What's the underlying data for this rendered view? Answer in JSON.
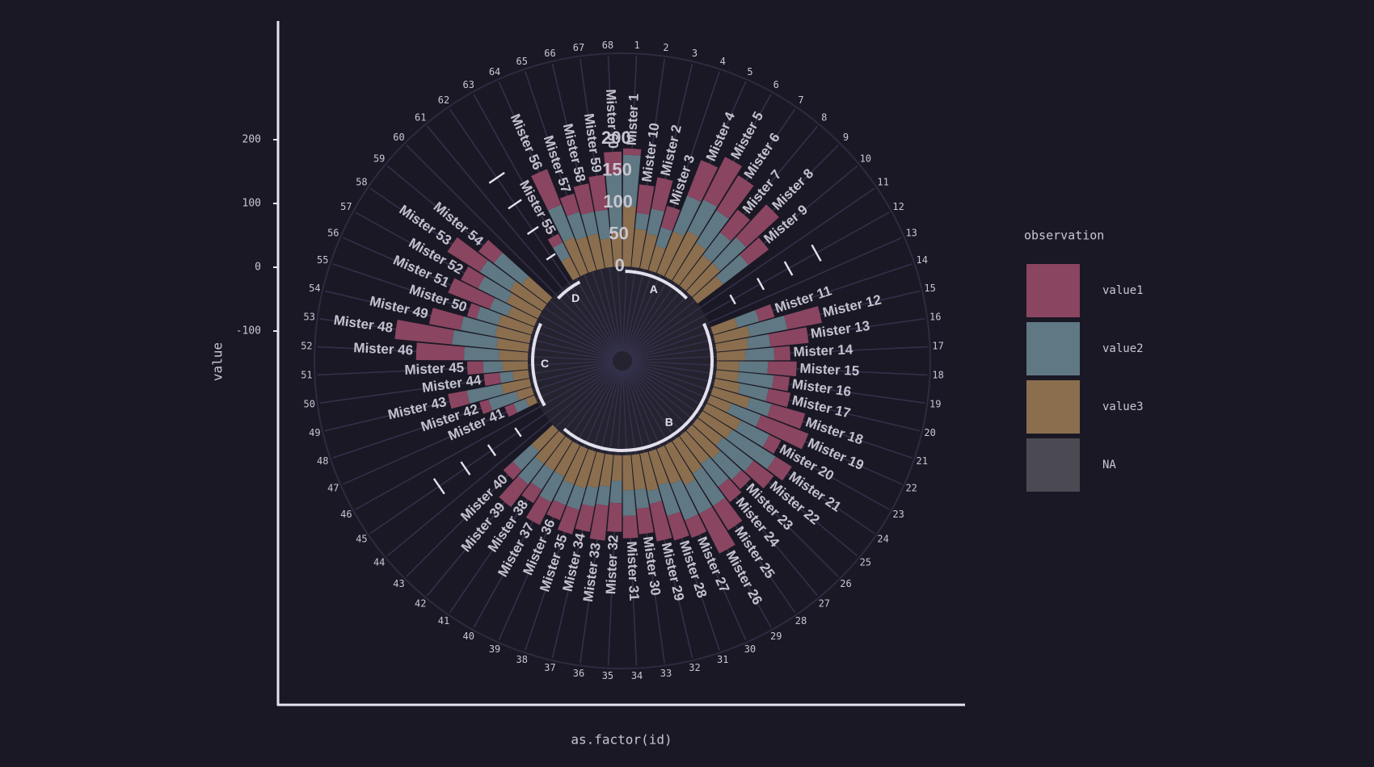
{
  "chart_data": {
    "type": "circular-stacked-bar",
    "xlabel": "as.factor(id)",
    "ylabel": "value",
    "y_ticks": [
      200,
      100,
      0,
      -100
    ],
    "y_range": [
      -200,
      300
    ],
    "radial_scale_labels": [
      "0",
      "50",
      "100",
      "150",
      "200"
    ],
    "radial_scale_values": [
      0,
      50,
      100,
      150,
      200
    ],
    "id_ticks": [
      "1",
      "2",
      "3",
      "4",
      "5",
      "6",
      "7",
      "8",
      "9",
      "10",
      "11",
      "12",
      "13",
      "14",
      "15",
      "16",
      "17",
      "18",
      "19",
      "20",
      "21",
      "22",
      "23",
      "24",
      "25",
      "26",
      "27",
      "28",
      "29",
      "30",
      "31",
      "32",
      "33",
      "34",
      "35",
      "36",
      "37",
      "38",
      "39",
      "40",
      "41",
      "42",
      "43",
      "44",
      "45",
      "46",
      "47",
      "48",
      "49",
      "50",
      "51",
      "52",
      "53",
      "54",
      "55",
      "56",
      "57",
      "58",
      "59",
      "60",
      "61",
      "62",
      "63",
      "64",
      "65",
      "66",
      "67",
      "68"
    ],
    "legend": {
      "title": "observation",
      "position": "right",
      "entries": [
        {
          "label": "value1",
          "color": "#8a4560"
        },
        {
          "label": "value2",
          "color": "#5f7883"
        },
        {
          "label": "value3",
          "color": "#8a6e4e"
        },
        {
          "label": "NA",
          "color": "#4b4a52"
        }
      ]
    },
    "groups": [
      {
        "name": "A",
        "start_id": 1,
        "end_id": 9
      },
      {
        "name": "B",
        "start_id": 13,
        "end_id": 42
      },
      {
        "name": "C",
        "start_id": 46,
        "end_id": 56
      },
      {
        "name": "D",
        "start_id": 60,
        "end_id": 63
      }
    ],
    "bars": [
      {
        "id": 1,
        "label": "Mister 1",
        "value1": 10,
        "value2": 80,
        "value3": 95
      },
      {
        "id": 2,
        "label": "Mister 10",
        "value1": 45,
        "value2": 25,
        "value3": 60
      },
      {
        "id": 3,
        "label": "Mister 2",
        "value1": 50,
        "value2": 40,
        "value3": 55
      },
      {
        "id": 4,
        "label": "Mister 3",
        "value1": 35,
        "value2": 30,
        "value3": 40
      },
      {
        "id": 5,
        "label": "Mister 4",
        "value1": 60,
        "value2": 60,
        "value3": 70
      },
      {
        "id": 6,
        "label": "Mister 5",
        "value1": 75,
        "value2": 55,
        "value3": 80
      },
      {
        "id": 7,
        "label": "Mister 6",
        "value1": 65,
        "value2": 60,
        "value3": 70
      },
      {
        "id": 8,
        "label": "Mister 7",
        "value1": 45,
        "value2": 45,
        "value3": 60
      },
      {
        "id": 9,
        "label": "Mister 8",
        "value1": 70,
        "value2": 55,
        "value3": 60
      },
      {
        "id": 10,
        "label": "Mister 9",
        "value1": 40,
        "value2": 50,
        "value3": 50
      },
      {
        "id": 14,
        "label": "Mister 11",
        "value1": 25,
        "value2": 35,
        "value3": 40
      },
      {
        "id": 15,
        "label": "Mister 12",
        "value1": 55,
        "value2": 60,
        "value3": 55
      },
      {
        "id": 16,
        "label": "Mister 13",
        "value1": 60,
        "value2": 35,
        "value3": 50
      },
      {
        "id": 17,
        "label": "Mister 14",
        "value1": 25,
        "value2": 45,
        "value3": 45
      },
      {
        "id": 18,
        "label": "Mister 15",
        "value1": 45,
        "value2": 45,
        "value3": 35
      },
      {
        "id": 19,
        "label": "Mister 16",
        "value1": 25,
        "value2": 55,
        "value3": 35
      },
      {
        "id": 20,
        "label": "Mister 17",
        "value1": 35,
        "value2": 45,
        "value3": 40
      },
      {
        "id": 21,
        "label": "Mister 18",
        "value1": 55,
        "value2": 35,
        "value3": 60
      },
      {
        "id": 22,
        "label": "Mister 19",
        "value1": 80,
        "value2": 50,
        "value3": 35
      },
      {
        "id": 23,
        "label": "Mister 20",
        "value1": 20,
        "value2": 50,
        "value3": 60
      },
      {
        "id": 24,
        "label": "Mister 21",
        "value1": 30,
        "value2": 80,
        "value3": 55
      },
      {
        "id": 25,
        "label": "Mister 22",
        "value1": 40,
        "value2": 60,
        "value3": 50
      },
      {
        "id": 26,
        "label": "Mister 23",
        "value1": 20,
        "value2": 45,
        "value3": 60
      },
      {
        "id": 27,
        "label": "Mister 24",
        "value1": 30,
        "value2": 45,
        "value3": 55
      },
      {
        "id": 28,
        "label": "Mister 25",
        "value1": 45,
        "value2": 60,
        "value3": 60
      },
      {
        "id": 29,
        "label": "Mister 26",
        "value1": 70,
        "value2": 50,
        "value3": 70
      },
      {
        "id": 30,
        "label": "Mister 27",
        "value1": 30,
        "value2": 60,
        "value3": 60
      },
      {
        "id": 31,
        "label": "Mister 28",
        "value1": 40,
        "value2": 50,
        "value3": 55
      },
      {
        "id": 32,
        "label": "Mister 29",
        "value1": 60,
        "value2": 20,
        "value3": 60
      },
      {
        "id": 33,
        "label": "Mister 30",
        "value1": 40,
        "value2": 30,
        "value3": 55
      },
      {
        "id": 34,
        "label": "Mister 31",
        "value1": 35,
        "value2": 40,
        "value3": 55
      },
      {
        "id": 35,
        "label": "Mister 32",
        "value1": 45,
        "value2": 35,
        "value3": 40
      },
      {
        "id": 36,
        "label": "Mister 33",
        "value1": 55,
        "value2": 30,
        "value3": 50
      },
      {
        "id": 37,
        "label": "Mister 34",
        "value1": 40,
        "value2": 30,
        "value3": 55
      },
      {
        "id": 38,
        "label": "Mister 35",
        "value1": 40,
        "value2": 35,
        "value3": 60
      },
      {
        "id": 39,
        "label": "Mister 36",
        "value1": 25,
        "value2": 35,
        "value3": 60
      },
      {
        "id": 40,
        "label": "Mister 37",
        "value1": 40,
        "value2": 45,
        "value3": 55
      },
      {
        "id": 41,
        "label": "Mister 38",
        "value1": 25,
        "value2": 35,
        "value3": 55
      },
      {
        "id": 42,
        "label": "Mister 39",
        "value1": 45,
        "value2": 40,
        "value3": 55
      },
      {
        "id": 43,
        "label": "Mister 40",
        "value1": 20,
        "value2": 40,
        "value3": 45
      },
      {
        "id": 47,
        "label": "Mister 41",
        "value1": 15,
        "value2": 20,
        "value3": 15
      },
      {
        "id": 48,
        "label": "Mister 42",
        "value1": 15,
        "value2": 45,
        "value3": 25
      },
      {
        "id": 49,
        "label": "Mister 43",
        "value1": 30,
        "value2": 55,
        "value3": 45
      },
      {
        "id": 50,
        "label": "Mister 44",
        "value1": 25,
        "value2": 20,
        "value3": 25
      },
      {
        "id": 51,
        "label": "Mister 45",
        "value1": 25,
        "value2": 30,
        "value3": 40
      },
      {
        "id": 52,
        "label": "Mister 46",
        "value1": 75,
        "value2": 55,
        "value3": 45
      },
      {
        "id": 53,
        "label": "Mister 48",
        "value1": 90,
        "value2": 70,
        "value3": 50
      },
      {
        "id": 54,
        "label": "Mister 49",
        "value1": 50,
        "value2": 55,
        "value3": 55
      },
      {
        "id": 55,
        "label": "Mister 50",
        "value1": 15,
        "value2": 35,
        "value3": 55
      },
      {
        "id": 56,
        "label": "Mister 51",
        "value1": 70,
        "value2": 30,
        "value3": 45
      },
      {
        "id": 57,
        "label": "Mister 52",
        "value1": 30,
        "value2": 50,
        "value3": 55
      },
      {
        "id": 58,
        "label": "Mister 53",
        "value1": 60,
        "value2": 55,
        "value3": 60
      },
      {
        "id": 59,
        "label": "Mister 54",
        "value1": 30,
        "value2": 55,
        "value3": 50
      },
      {
        "id": 63,
        "label": "Mister 55",
        "value1": 15,
        "value2": 25,
        "value3": 35
      },
      {
        "id": 64,
        "label": "Mister 56",
        "value1": 60,
        "value2": 55,
        "value3": 60
      },
      {
        "id": 65,
        "label": "Mister 57",
        "value1": 30,
        "value2": 40,
        "value3": 55
      },
      {
        "id": 66,
        "label": "Mister 58",
        "value1": 45,
        "value2": 35,
        "value3": 55
      },
      {
        "id": 67,
        "label": "Mister 59",
        "value1": 55,
        "value2": 45,
        "value3": 45
      },
      {
        "id": 68,
        "label": "Mister 60",
        "value1": 35,
        "value2": 90,
        "value3": 55
      }
    ]
  }
}
